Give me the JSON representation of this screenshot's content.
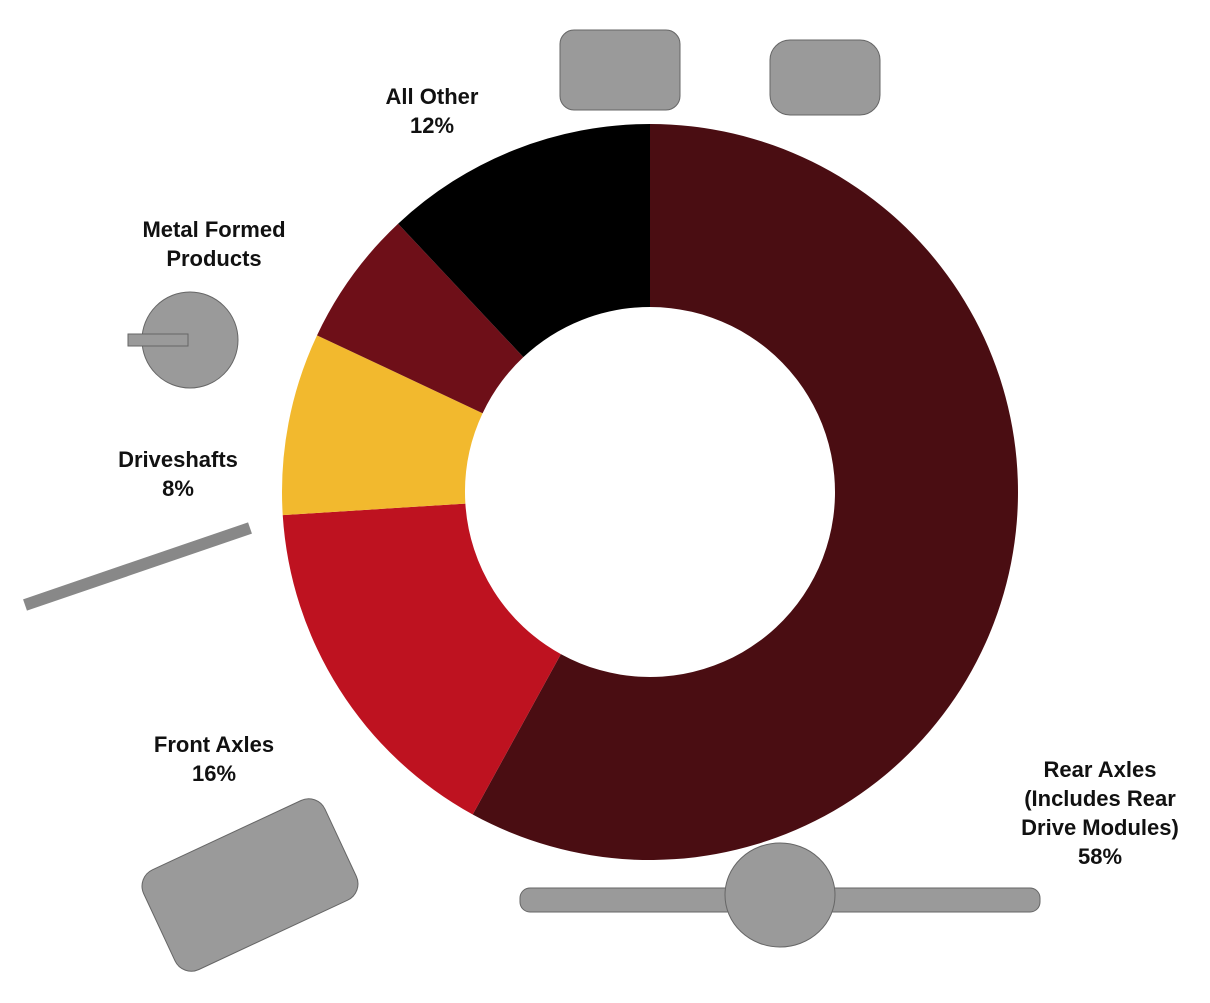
{
  "chart_data": {
    "type": "donut",
    "categories": [
      "Rear Axles (Includes Rear Drive Modules)",
      "Front Axles",
      "Driveshafts",
      "Metal Formed Products",
      "All Other"
    ],
    "values": [
      58,
      16,
      8,
      6,
      12
    ],
    "value_labels": [
      "58%",
      "16%",
      "8%",
      null,
      "12%"
    ],
    "colors": [
      "#4a0d12",
      "#be1220",
      "#f2b92e",
      "#6e0f18",
      "#000000"
    ]
  }
}
